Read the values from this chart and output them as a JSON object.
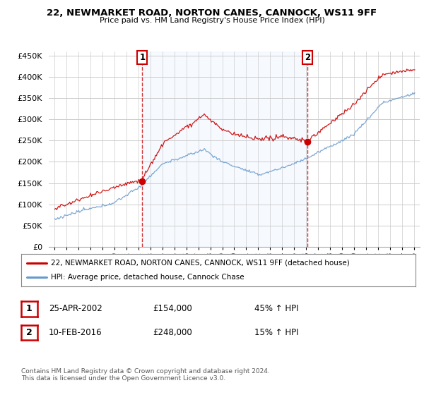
{
  "title": "22, NEWMARKET ROAD, NORTON CANES, CANNOCK, WS11 9FF",
  "subtitle": "Price paid vs. HM Land Registry's House Price Index (HPI)",
  "legend_line1": "22, NEWMARKET ROAD, NORTON CANES, CANNOCK, WS11 9FF (detached house)",
  "legend_line2": "HPI: Average price, detached house, Cannock Chase",
  "footer": "Contains HM Land Registry data © Crown copyright and database right 2024.\nThis data is licensed under the Open Government Licence v3.0.",
  "sale1_date": "25-APR-2002",
  "sale1_price": "£154,000",
  "sale1_pct": "45% ↑ HPI",
  "sale1_year": 2002.32,
  "sale1_value": 154000,
  "sale2_date": "10-FEB-2016",
  "sale2_price": "£248,000",
  "sale2_pct": "15% ↑ HPI",
  "sale2_year": 2016.12,
  "sale2_value": 248000,
  "hpi_color": "#6699cc",
  "price_color": "#cc0000",
  "vline_color": "#cc0000",
  "fill_color": "#ddeeff",
  "background_color": "#ffffff",
  "grid_color": "#cccccc",
  "ylim": [
    0,
    460000
  ],
  "xlim_start": 1994.5,
  "xlim_end": 2025.5,
  "yticks": [
    0,
    50000,
    100000,
    150000,
    200000,
    250000,
    300000,
    350000,
    400000,
    450000
  ],
  "xticks": [
    1995,
    1996,
    1997,
    1998,
    1999,
    2000,
    2001,
    2002,
    2003,
    2004,
    2005,
    2006,
    2007,
    2008,
    2009,
    2010,
    2011,
    2012,
    2013,
    2014,
    2015,
    2016,
    2017,
    2018,
    2019,
    2020,
    2021,
    2022,
    2023,
    2024,
    2025
  ]
}
